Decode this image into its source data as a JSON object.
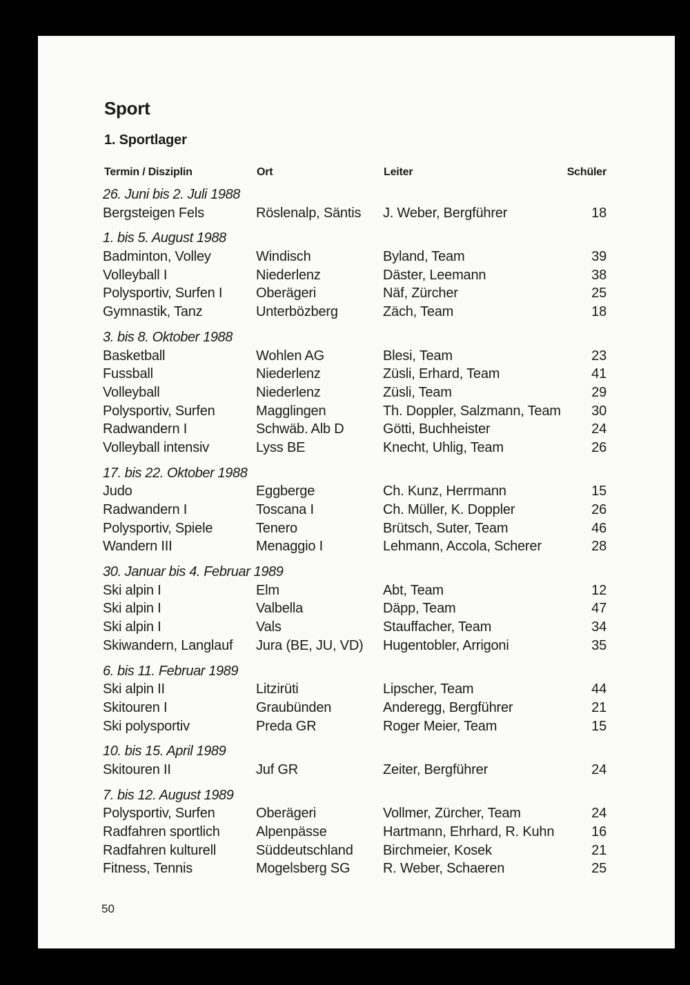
{
  "title": "Sport",
  "subtitle": "1. Sportlager",
  "headers": {
    "col1": "Termin / Disziplin",
    "col2": "Ort",
    "col3": "Leiter",
    "col4": "Schüler"
  },
  "groups": [
    {
      "date": "26. Juni bis 2. Juli 1988",
      "rows": [
        [
          "Bergsteigen Fels",
          "Röslenalp, Säntis",
          "J. Weber, Bergführer",
          "18"
        ]
      ]
    },
    {
      "date": "1. bis 5. August 1988",
      "rows": [
        [
          "Badminton, Volley",
          "Windisch",
          "Byland, Team",
          "39"
        ],
        [
          "Volleyball I",
          "Niederlenz",
          "Däster, Leemann",
          "38"
        ],
        [
          "Polysportiv, Surfen I",
          "Oberägeri",
          "Näf, Zürcher",
          "25"
        ],
        [
          "Gymnastik, Tanz",
          "Unterbözberg",
          "Zäch, Team",
          "18"
        ]
      ]
    },
    {
      "date": "3. bis 8. Oktober 1988",
      "rows": [
        [
          "Basketball",
          "Wohlen AG",
          "Blesi, Team",
          "23"
        ],
        [
          "Fussball",
          "Niederlenz",
          "Züsli, Erhard, Team",
          "41"
        ],
        [
          "Volleyball",
          "Niederlenz",
          "Züsli, Team",
          "29"
        ],
        [
          "Polysportiv, Surfen",
          "Magglingen",
          "Th. Doppler, Salzmann, Team",
          "30"
        ],
        [
          "Radwandern I",
          "Schwäb. Alb D",
          "Götti, Buchheister",
          "24"
        ],
        [
          "Volleyball intensiv",
          "Lyss BE",
          "Knecht, Uhlig, Team",
          "26"
        ]
      ]
    },
    {
      "date": "17. bis 22. Oktober 1988",
      "rows": [
        [
          "Judo",
          "Eggberge",
          "Ch. Kunz, Herrmann",
          "15"
        ],
        [
          "Radwandern I",
          "Toscana I",
          "Ch. Müller, K. Doppler",
          "26"
        ],
        [
          "Polysportiv, Spiele",
          "Tenero",
          "Brütsch, Suter, Team",
          "46"
        ],
        [
          "Wandern III",
          "Menaggio I",
          "Lehmann, Accola, Scherer",
          "28"
        ]
      ]
    },
    {
      "date": "30. Januar bis 4. Februar 1989",
      "rows": [
        [
          "Ski alpin I",
          "Elm",
          "Abt, Team",
          "12"
        ],
        [
          "Ski alpin I",
          "Valbella",
          "Däpp, Team",
          "47"
        ],
        [
          "Ski alpin I",
          "Vals",
          "Stauffacher, Team",
          "34"
        ],
        [
          "Skiwandern, Langlauf",
          "Jura (BE, JU, VD)",
          "Hugentobler, Arrigoni",
          "35"
        ]
      ]
    },
    {
      "date": "6. bis 11. Februar 1989",
      "rows": [
        [
          "Ski alpin II",
          "Litzirüti",
          "Lipscher, Team",
          "44"
        ],
        [
          "Skitouren I",
          "Graubünden",
          "Anderegg, Bergführer",
          "21"
        ],
        [
          "Ski polysportiv",
          "Preda GR",
          "Roger Meier, Team",
          "15"
        ]
      ]
    },
    {
      "date": "10. bis 15. April 1989",
      "rows": [
        [
          "Skitouren II",
          "Juf GR",
          "Zeiter, Bergführer",
          "24"
        ]
      ]
    },
    {
      "date": "7. bis 12. August 1989",
      "rows": [
        [
          "Polysportiv, Surfen",
          "Oberägeri",
          "Vollmer, Zürcher, Team",
          "24"
        ],
        [
          "Radfahren sportlich",
          "Alpenpässe",
          "Hartmann, Ehrhard, R. Kuhn",
          "16"
        ],
        [
          "Radfahren kulturell",
          "Süddeutschland",
          "Birchmeier, Kosek",
          "21"
        ],
        [
          "Fitness, Tennis",
          "Mogelsberg SG",
          "R. Weber, Schaeren",
          "25"
        ]
      ]
    }
  ],
  "page_number": "50"
}
